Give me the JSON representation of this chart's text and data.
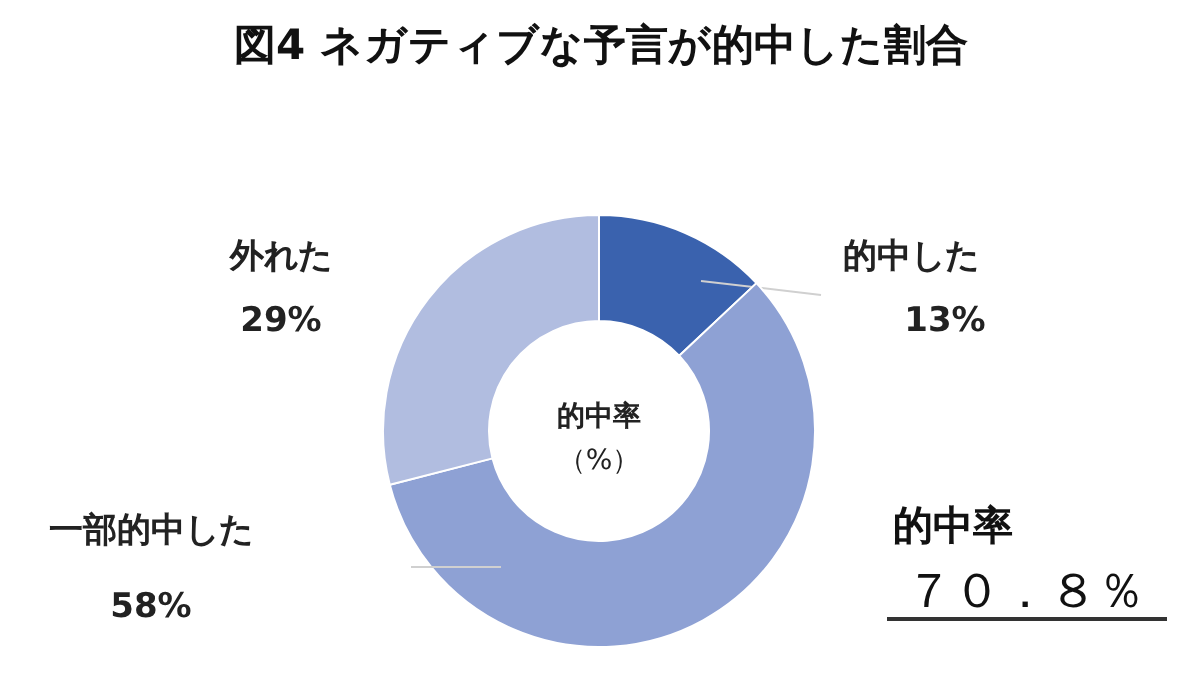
{
  "chart_data": {
    "type": "donut",
    "title": "図4 ネガティブな予言が的中した割合",
    "categories": [
      "的中した",
      "一部的中した",
      "外れた"
    ],
    "values": [
      13,
      58,
      29
    ],
    "colors": [
      "#3a62ae",
      "#8ea1d4",
      "#b1bde0"
    ],
    "value_labels": [
      "13%",
      "58%",
      "29%"
    ],
    "annotations": [
      "的中率",
      "（%）",
      "的中率",
      "７０．８％"
    ]
  }
}
